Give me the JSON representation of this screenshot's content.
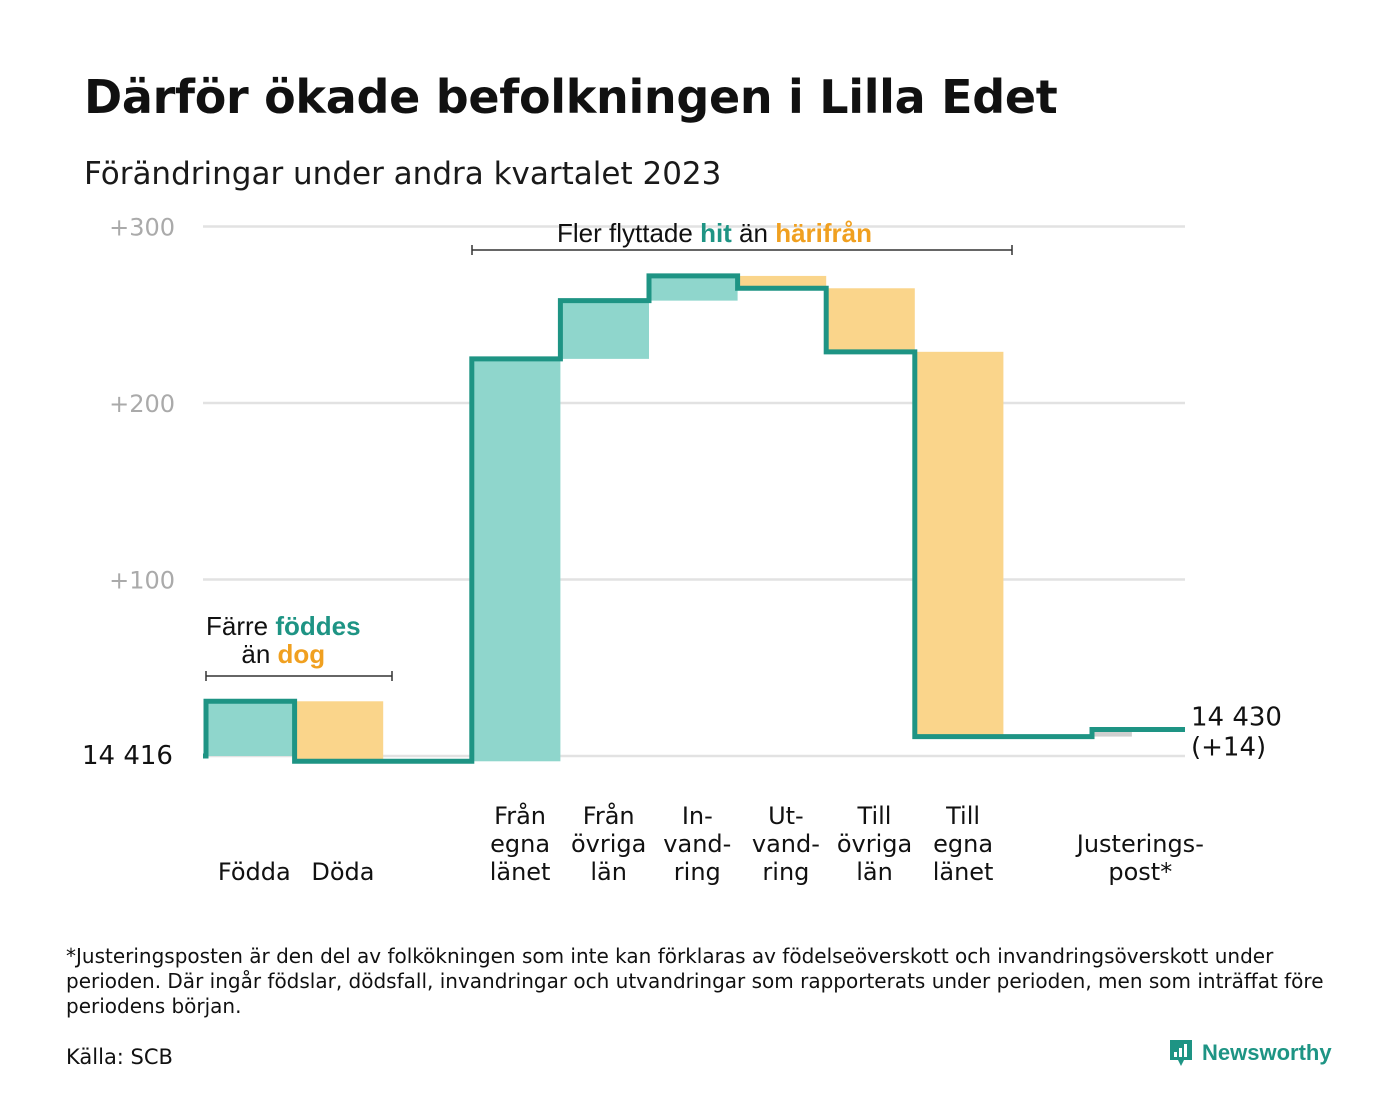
{
  "title": "Därför ökade befolkningen i Lilla Edet",
  "subtitle": "Förändringar under andra kvartalet 2023",
  "footnote": "*Justeringsposten är den del av folkökningen som inte kan förklaras av födelseöverskott och invandringsöverskott under perioden. Där ingår födslar, dödsfall, invandringar och utvandringar som rapporterats under perioden, men som inträffat före periodens början.",
  "source": "Källa: SCB",
  "logo": {
    "text": "Newsworthy",
    "icon": "newsworthy-logo-icon"
  },
  "colors": {
    "teal_fill": "#8fd6cc",
    "orange_fill": "#fad58b",
    "line": "#1e9484",
    "grey_fill": "#cfcfcf",
    "teal_text": "#1e9484",
    "orange_text": "#f0a020",
    "grid": "#e2e2e2",
    "tick": "#aaaaaa"
  },
  "annotations": {
    "births": {
      "line1_pre": "Färre ",
      "line1_hl": "föddes",
      "line2_pre": "än ",
      "line2_hl": "dog"
    },
    "moves": {
      "pre": "Fler flyttade ",
      "hl1": "hit",
      "mid": " än ",
      "hl2": "härifrån"
    }
  },
  "chart_data": {
    "type": "waterfall",
    "start_value": 14416,
    "start_label": "14  416",
    "end_label_line1": "14 430",
    "end_label_line2": "(+14)",
    "yticks": [
      "+100",
      "+200",
      "+300"
    ],
    "ylim": [
      -5,
      305
    ],
    "grid": true,
    "steps": [
      {
        "label": [
          "Födda"
        ],
        "value": 31,
        "sign": "inflow"
      },
      {
        "label": [
          "Döda"
        ],
        "value": -34,
        "sign": "outflow"
      },
      {
        "label": [
          ""
        ],
        "value": 0,
        "sign": "none"
      },
      {
        "label": [
          "Från",
          "egna",
          "länet"
        ],
        "value": 228,
        "sign": "inflow"
      },
      {
        "label": [
          "Från",
          "övriga",
          "län"
        ],
        "value": 33,
        "sign": "inflow"
      },
      {
        "label": [
          "In-",
          "vand-",
          "ring"
        ],
        "value": 14,
        "sign": "inflow"
      },
      {
        "label": [
          "Ut-",
          "vand-",
          "ring"
        ],
        "value": -7,
        "sign": "outflow"
      },
      {
        "label": [
          "Till",
          "övriga",
          "län"
        ],
        "value": -36,
        "sign": "outflow"
      },
      {
        "label": [
          "Till",
          "egna",
          "länet"
        ],
        "value": -218,
        "sign": "outflow"
      },
      {
        "label": [
          ""
        ],
        "value": 0,
        "sign": "none"
      },
      {
        "label": [
          "Justerings-",
          "post*"
        ],
        "value": 4,
        "sign": "adjustment"
      }
    ]
  }
}
